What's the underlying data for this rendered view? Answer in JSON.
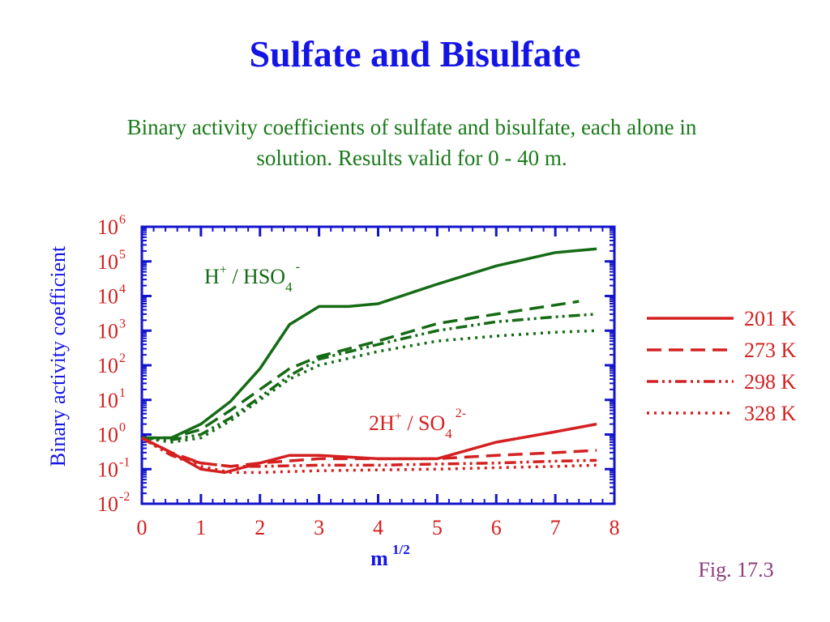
{
  "title": "Sulfate and Bisulfate",
  "subtitle": [
    "Binary activity coefficients of sulfate and bisulfate, each alone in",
    "solution. Results valid for 0 - 40 m."
  ],
  "figure_label": "Fig. 17.3",
  "chart_data": {
    "type": "line",
    "y_label": "Binary activity coefficient",
    "x_label": {
      "base": "m",
      "sup": "1/2"
    },
    "xlim": [
      0,
      8
    ],
    "xticks": [
      0,
      1,
      2,
      3,
      4,
      5,
      6,
      7,
      8
    ],
    "ylim": [
      0.01,
      1000000
    ],
    "log_y": true,
    "yticks": [
      {
        "value": 0.01,
        "label": "10",
        "sup": "-2"
      },
      {
        "value": 0.1,
        "label": "10",
        "sup": "-1"
      },
      {
        "value": 1,
        "label": "10",
        "sup": "0"
      },
      {
        "value": 10,
        "label": "10",
        "sup": "1"
      },
      {
        "value": 100,
        "label": "10",
        "sup": "2"
      },
      {
        "value": 1000,
        "label": "10",
        "sup": "3"
      },
      {
        "value": 10000,
        "label": "10",
        "sup": "4"
      },
      {
        "value": 100000,
        "label": "10",
        "sup": "5"
      },
      {
        "value": 1000000,
        "label": "10",
        "sup": "6"
      }
    ],
    "annotations": [
      [
        "H",
        "+",
        " / HSO",
        "4",
        "-"
      ],
      [
        "2H",
        "+",
        " / SO",
        "4",
        "2-"
      ]
    ],
    "series": [
      {
        "name": "201 K",
        "color": "#156b15",
        "style": "solid",
        "x": [
          0,
          0.5,
          1,
          1.5,
          2,
          2.5,
          3,
          3.5,
          4,
          5,
          6,
          7,
          7.7
        ],
        "values": [
          0.8,
          0.8,
          2,
          9,
          80,
          1500,
          5000,
          5000,
          6000,
          22000,
          74000,
          180000,
          230000
        ]
      },
      {
        "name": "273 K",
        "color": "#156b15",
        "style": "dashed",
        "x": [
          0,
          0.5,
          1,
          1.5,
          2,
          2.5,
          3,
          4,
          5,
          6,
          7.4
        ],
        "values": [
          0.8,
          0.8,
          1.4,
          5,
          20,
          80,
          180,
          500,
          1600,
          3000,
          7000
        ]
      },
      {
        "name": "298 K",
        "color": "#156b15",
        "style": "dashdot",
        "x": [
          0,
          0.5,
          1,
          1.5,
          2,
          2.5,
          3,
          4,
          5,
          6,
          7,
          7.7
        ],
        "values": [
          0.8,
          0.7,
          1,
          3,
          12,
          50,
          150,
          400,
          1000,
          1800,
          2500,
          3000
        ]
      },
      {
        "name": "328 K",
        "color": "#156b15",
        "style": "dotted",
        "x": [
          0,
          0.5,
          1,
          1.5,
          2,
          2.5,
          3,
          4,
          5,
          6,
          7,
          7.7
        ],
        "values": [
          0.8,
          0.6,
          0.8,
          2.5,
          10,
          40,
          100,
          250,
          500,
          700,
          900,
          1000
        ]
      },
      {
        "name": "201 K",
        "color": "#d42020",
        "style": "solid",
        "in_legend": true,
        "x": [
          0,
          0.5,
          1,
          1.4,
          2,
          2.5,
          3,
          4,
          5,
          6,
          7,
          7.7
        ],
        "values": [
          0.8,
          0.3,
          0.1,
          0.08,
          0.15,
          0.25,
          0.25,
          0.2,
          0.2,
          0.6,
          1.2,
          2
        ]
      },
      {
        "name": "273 K",
        "color": "#d42020",
        "style": "dashed",
        "in_legend": true,
        "x": [
          0,
          0.5,
          1,
          1.5,
          2,
          3,
          4,
          5,
          6,
          7,
          7.7
        ],
        "values": [
          0.8,
          0.3,
          0.15,
          0.12,
          0.15,
          0.2,
          0.2,
          0.2,
          0.25,
          0.3,
          0.35
        ]
      },
      {
        "name": "298 K",
        "color": "#d42020",
        "style": "dashdot",
        "in_legend": true,
        "x": [
          0,
          0.5,
          1,
          1.5,
          2,
          3,
          4,
          5,
          6,
          7,
          7.7
        ],
        "values": [
          0.8,
          0.25,
          0.15,
          0.12,
          0.12,
          0.13,
          0.13,
          0.14,
          0.15,
          0.17,
          0.18
        ]
      },
      {
        "name": "328 K",
        "color": "#d42020",
        "style": "dotted",
        "in_legend": true,
        "x": [
          0,
          0.5,
          1,
          1.5,
          2,
          3,
          5,
          6,
          7,
          7.7
        ],
        "values": [
          0.8,
          0.25,
          0.12,
          0.08,
          0.08,
          0.09,
          0.1,
          0.11,
          0.12,
          0.13
        ]
      }
    ]
  }
}
